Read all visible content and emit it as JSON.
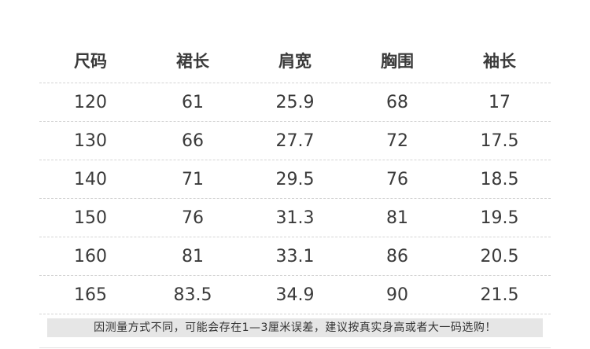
{
  "table": {
    "headers": [
      "尺码",
      "裙长",
      "肩宽",
      "胸围",
      "袖长"
    ],
    "rows": [
      [
        "120",
        "61",
        "25.9",
        "68",
        "17"
      ],
      [
        "130",
        "66",
        "27.7",
        "72",
        "17.5"
      ],
      [
        "140",
        "71",
        "29.5",
        "76",
        "18.5"
      ],
      [
        "150",
        "76",
        "31.3",
        "81",
        "19.5"
      ],
      [
        "160",
        "81",
        "33.1",
        "86",
        "20.5"
      ],
      [
        "165",
        "83.5",
        "34.9",
        "90",
        "21.5"
      ]
    ]
  },
  "note": "因测量方式不同，可能会存在1—3厘米误差，建议按真实身高或者大一码选购！"
}
